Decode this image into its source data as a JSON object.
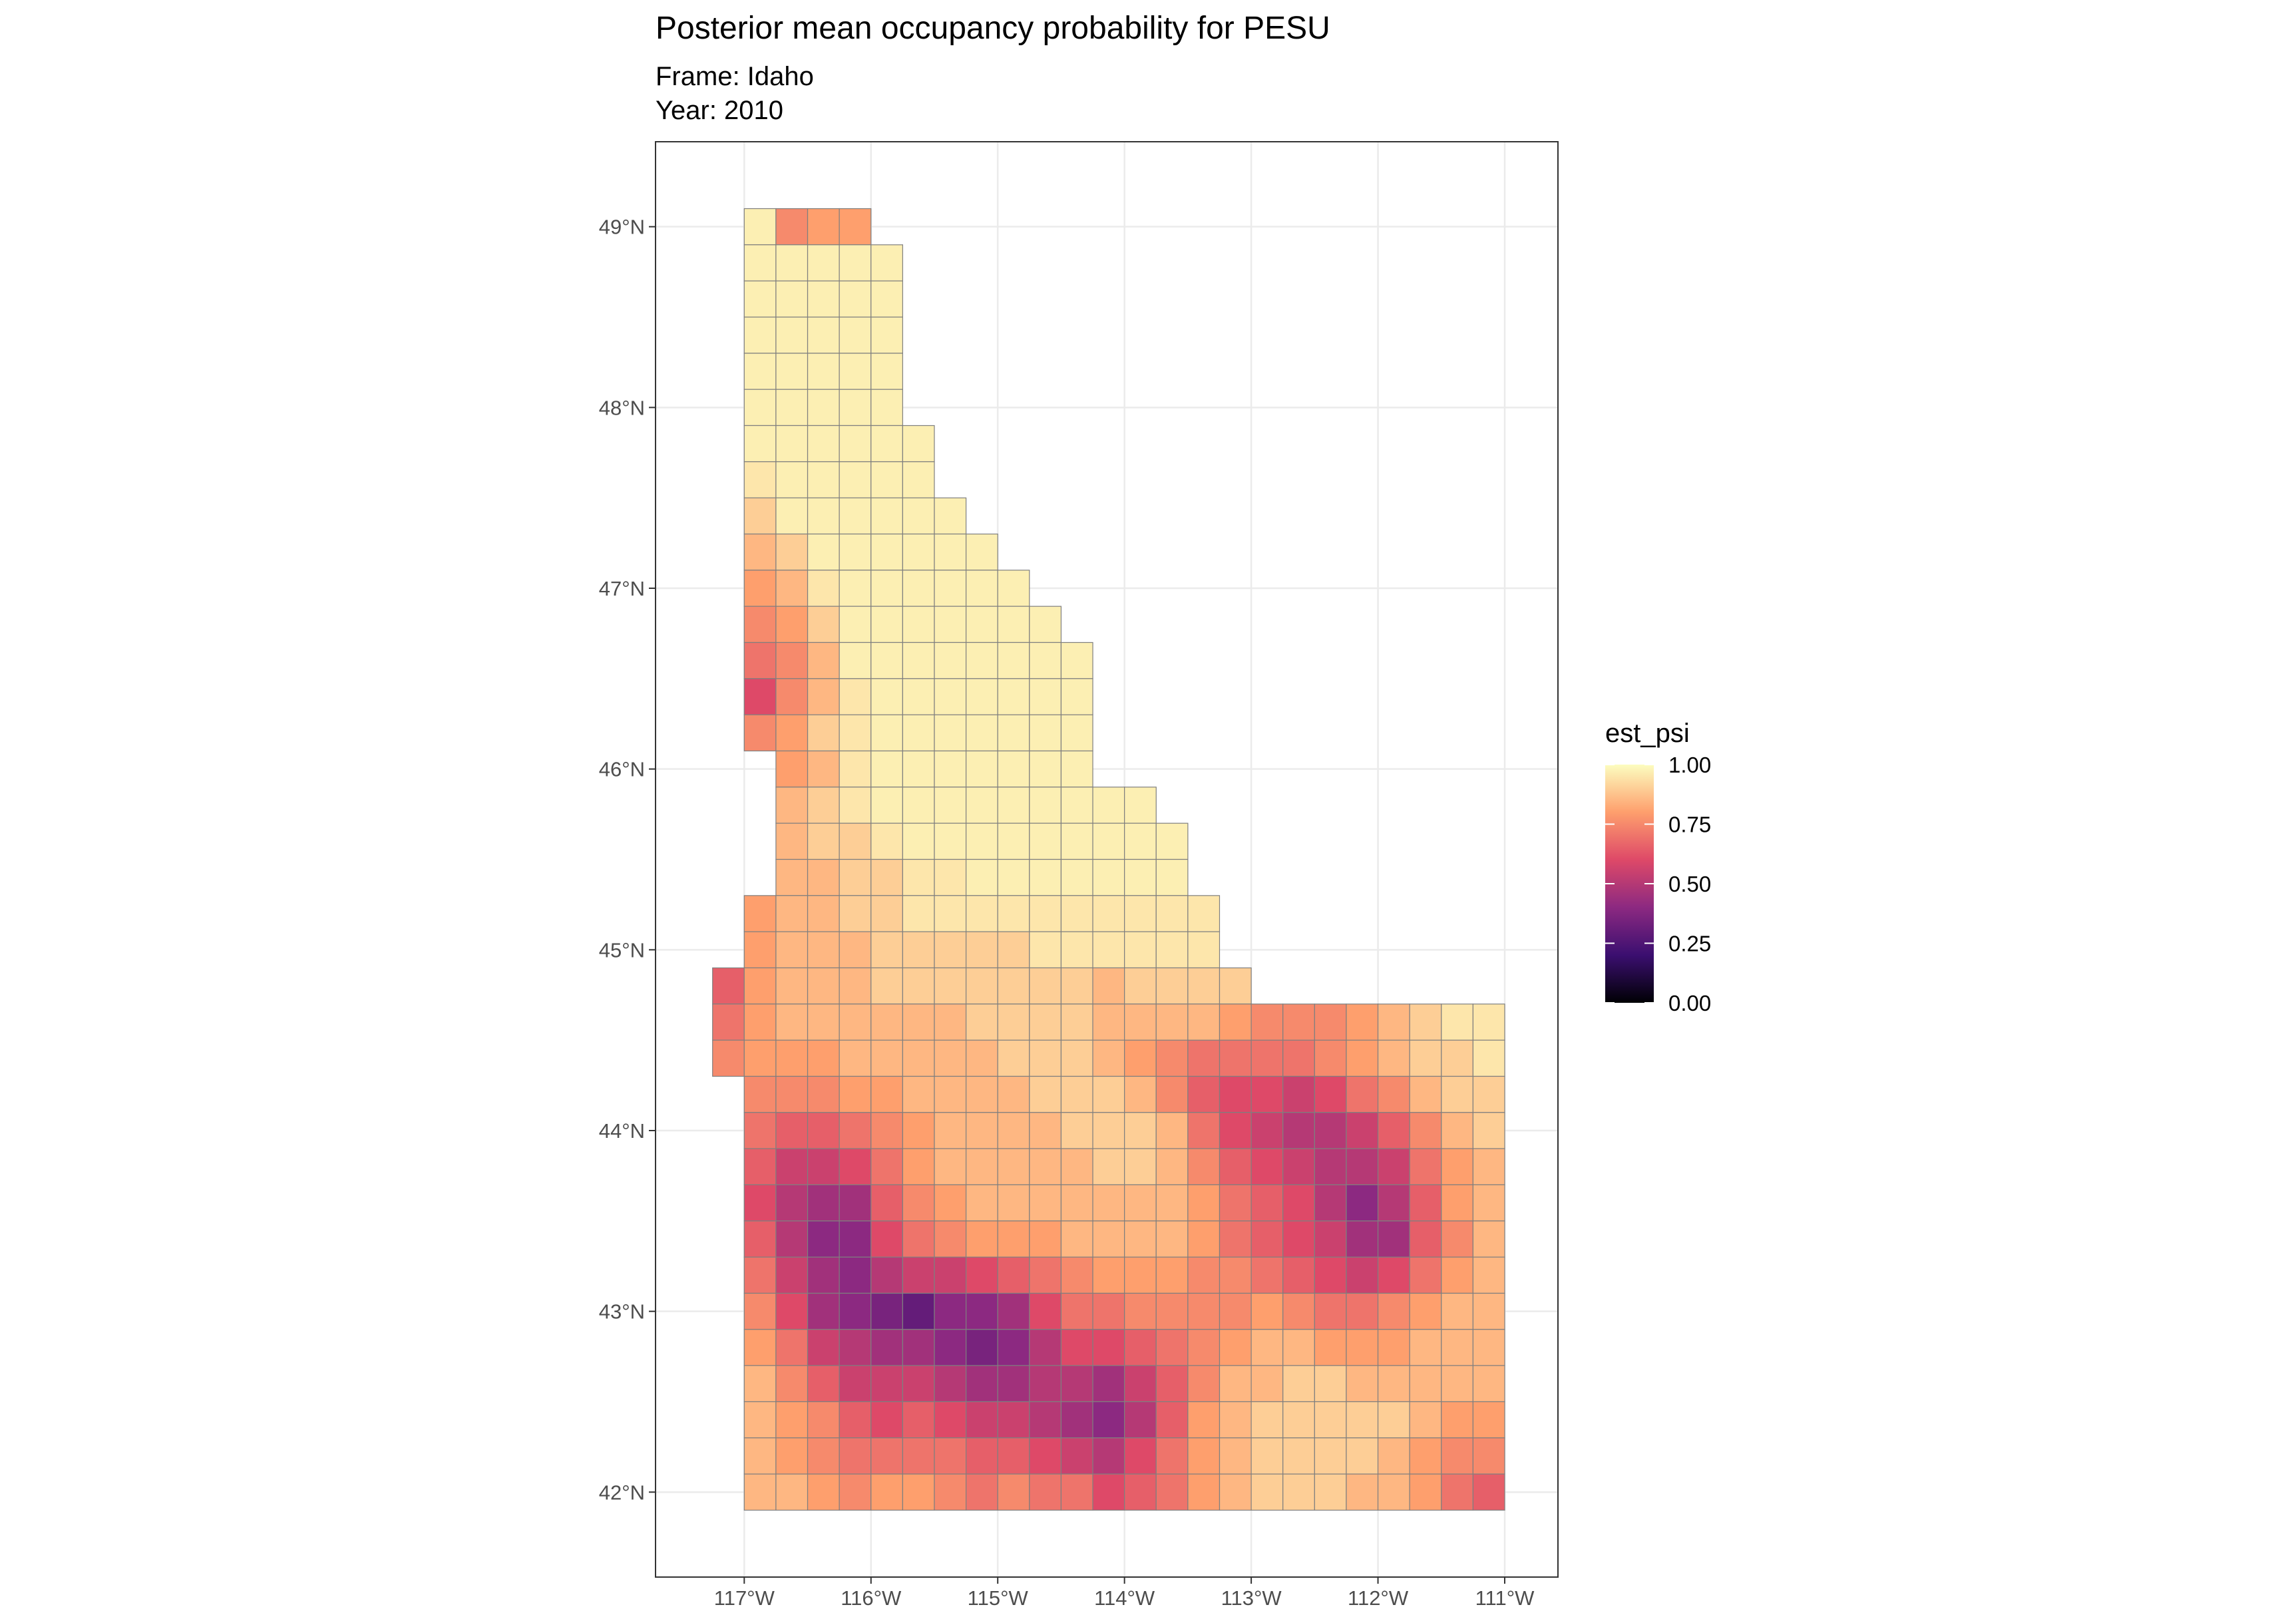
{
  "chart_data": {
    "type": "map",
    "title": "Posterior mean occupancy probability for PESU",
    "subtitle": [
      "Frame: Idaho",
      "Year: 2010"
    ],
    "legend_title": "est_psi",
    "legend_ticks": [
      {
        "value": 0,
        "label": "0.00"
      },
      {
        "value": 0.25,
        "label": "0.25"
      },
      {
        "value": 0.5,
        "label": "0.50"
      },
      {
        "value": 0.75,
        "label": "0.75"
      },
      {
        "value": 1,
        "label": "1.00"
      }
    ],
    "colors": [
      "#000004",
      "#3b0f70",
      "#8c2981",
      "#de4968",
      "#fe9f6d",
      "#fcfdbf"
    ],
    "xlim": [
      -117.7,
      -110.58
    ],
    "ylim": [
      41.53,
      49.47
    ],
    "xticks": [
      {
        "value": -117,
        "label": "117°W"
      },
      {
        "value": -116,
        "label": "116°W"
      },
      {
        "value": -115,
        "label": "115°W"
      },
      {
        "value": -114,
        "label": "114°W"
      },
      {
        "value": -113,
        "label": "113°W"
      },
      {
        "value": -112,
        "label": "112°W"
      },
      {
        "value": -111,
        "label": "111°W"
      }
    ],
    "yticks": [
      {
        "value": 42,
        "label": "42°N"
      },
      {
        "value": 43,
        "label": "43°N"
      },
      {
        "value": 44,
        "label": "44°N"
      },
      {
        "value": 45,
        "label": "45°N"
      },
      {
        "value": 46,
        "label": "46°N"
      },
      {
        "value": 47,
        "label": "47°N"
      },
      {
        "value": 48,
        "label": "48°N"
      },
      {
        "value": 49,
        "label": "49°N"
      }
    ],
    "grid": true,
    "cell_size": [
      0.25,
      0.2
    ],
    "rows": [
      {
        "lat": 48.9,
        "lon": -117.0,
        "values": [
          0.97,
          0.75,
          0.8,
          0.8
        ]
      },
      {
        "lat": 48.7,
        "lon": -117.0,
        "values": [
          0.97,
          0.97,
          0.97,
          0.97,
          0.97
        ]
      },
      {
        "lat": 48.5,
        "lon": -117.0,
        "values": [
          0.97,
          0.97,
          0.97,
          0.97,
          0.97
        ]
      },
      {
        "lat": 48.3,
        "lon": -117.0,
        "values": [
          0.97,
          0.97,
          0.97,
          0.97,
          0.97
        ]
      },
      {
        "lat": 48.1,
        "lon": -117.0,
        "values": [
          0.97,
          0.97,
          0.97,
          0.97,
          0.97
        ]
      },
      {
        "lat": 47.9,
        "lon": -117.0,
        "values": [
          0.97,
          0.97,
          0.97,
          0.97,
          0.97
        ]
      },
      {
        "lat": 47.7,
        "lon": -117.0,
        "values": [
          0.97,
          0.97,
          0.97,
          0.97,
          0.97,
          0.97
        ]
      },
      {
        "lat": 47.5,
        "lon": -117.0,
        "values": [
          0.95,
          0.97,
          0.97,
          0.97,
          0.97,
          0.97
        ]
      },
      {
        "lat": 47.3,
        "lon": -117.0,
        "values": [
          0.9,
          0.97,
          0.97,
          0.97,
          0.97,
          0.97,
          0.97
        ]
      },
      {
        "lat": 47.1,
        "lon": -117.0,
        "values": [
          0.85,
          0.9,
          0.97,
          0.97,
          0.97,
          0.97,
          0.97,
          0.97
        ]
      },
      {
        "lat": 46.9,
        "lon": -117.0,
        "values": [
          0.8,
          0.85,
          0.95,
          0.97,
          0.97,
          0.97,
          0.97,
          0.97,
          0.97
        ]
      },
      {
        "lat": 46.7,
        "lon": -117.0,
        "values": [
          0.75,
          0.8,
          0.9,
          0.97,
          0.97,
          0.97,
          0.97,
          0.97,
          0.97,
          0.97
        ]
      },
      {
        "lat": 46.5,
        "lon": -117.0,
        "values": [
          0.7,
          0.75,
          0.85,
          0.97,
          0.97,
          0.97,
          0.97,
          0.97,
          0.97,
          0.97,
          0.97
        ]
      },
      {
        "lat": 46.3,
        "lon": -117.0,
        "values": [
          0.6,
          0.75,
          0.85,
          0.95,
          0.97,
          0.97,
          0.97,
          0.97,
          0.97,
          0.97,
          0.97
        ]
      },
      {
        "lat": 46.1,
        "lon": -117.0,
        "values": [
          0.75,
          0.8,
          0.9,
          0.95,
          0.97,
          0.97,
          0.97,
          0.97,
          0.97,
          0.97,
          0.97
        ]
      },
      {
        "lat": 45.9,
        "lon": -116.75,
        "values": [
          0.8,
          0.85,
          0.95,
          0.97,
          0.97,
          0.97,
          0.97,
          0.97,
          0.97,
          0.97
        ]
      },
      {
        "lat": 45.7,
        "lon": -116.75,
        "values": [
          0.85,
          0.9,
          0.95,
          0.97,
          0.97,
          0.97,
          0.97,
          0.97,
          0.97,
          0.97,
          0.97,
          0.97
        ]
      },
      {
        "lat": 45.5,
        "lon": -116.75,
        "values": [
          0.85,
          0.9,
          0.9,
          0.95,
          0.97,
          0.97,
          0.97,
          0.97,
          0.97,
          0.97,
          0.97,
          0.97,
          0.97
        ]
      },
      {
        "lat": 45.3,
        "lon": -116.75,
        "values": [
          0.85,
          0.85,
          0.9,
          0.9,
          0.95,
          0.95,
          0.97,
          0.97,
          0.97,
          0.97,
          0.97,
          0.97,
          0.97
        ]
      },
      {
        "lat": 45.1,
        "lon": -117.0,
        "values": [
          0.8,
          0.85,
          0.85,
          0.9,
          0.9,
          0.95,
          0.95,
          0.95,
          0.95,
          0.95,
          0.95,
          0.95,
          0.95,
          0.95,
          0.95
        ]
      },
      {
        "lat": 44.9,
        "lon": -117.0,
        "values": [
          0.8,
          0.85,
          0.85,
          0.85,
          0.9,
          0.9,
          0.9,
          0.9,
          0.9,
          0.95,
          0.95,
          0.95,
          0.95,
          0.95,
          0.95
        ]
      },
      {
        "lat": 44.7,
        "lon": -117.25,
        "values": [
          0.65,
          0.8,
          0.85,
          0.85,
          0.85,
          0.9,
          0.9,
          0.9,
          0.9,
          0.9,
          0.9,
          0.9,
          0.85,
          0.9,
          0.9,
          0.9,
          0.9
        ]
      },
      {
        "lat": 44.5,
        "lon": -117.25,
        "values": [
          0.7,
          0.8,
          0.85,
          0.85,
          0.85,
          0.85,
          0.85,
          0.85,
          0.9,
          0.9,
          0.9,
          0.9,
          0.85,
          0.85,
          0.85,
          0.85,
          0.8,
          0.75,
          0.75,
          0.75,
          0.8,
          0.85,
          0.9,
          0.95,
          0.95
        ]
      },
      {
        "lat": 44.3,
        "lon": -117.25,
        "values": [
          0.75,
          0.8,
          0.8,
          0.8,
          0.85,
          0.85,
          0.85,
          0.85,
          0.85,
          0.9,
          0.9,
          0.9,
          0.85,
          0.8,
          0.75,
          0.7,
          0.7,
          0.7,
          0.7,
          0.75,
          0.8,
          0.85,
          0.9,
          0.9,
          0.95
        ]
      },
      {
        "lat": 44.1,
        "lon": -117.0,
        "values": [
          0.75,
          0.75,
          0.75,
          0.8,
          0.8,
          0.85,
          0.85,
          0.85,
          0.85,
          0.9,
          0.9,
          0.9,
          0.85,
          0.75,
          0.65,
          0.6,
          0.6,
          0.55,
          0.6,
          0.7,
          0.75,
          0.85,
          0.9,
          0.9
        ]
      },
      {
        "lat": 43.9,
        "lon": -117.0,
        "values": [
          0.7,
          0.65,
          0.65,
          0.7,
          0.75,
          0.8,
          0.85,
          0.85,
          0.85,
          0.85,
          0.9,
          0.9,
          0.9,
          0.85,
          0.7,
          0.6,
          0.55,
          0.5,
          0.5,
          0.55,
          0.65,
          0.75,
          0.85,
          0.9
        ]
      },
      {
        "lat": 43.7,
        "lon": -117.0,
        "values": [
          0.65,
          0.55,
          0.55,
          0.6,
          0.7,
          0.8,
          0.85,
          0.85,
          0.85,
          0.85,
          0.85,
          0.9,
          0.9,
          0.85,
          0.75,
          0.65,
          0.6,
          0.55,
          0.5,
          0.5,
          0.55,
          0.7,
          0.8,
          0.85
        ]
      },
      {
        "lat": 43.5,
        "lon": -117.0,
        "values": [
          0.6,
          0.5,
          0.45,
          0.45,
          0.65,
          0.75,
          0.8,
          0.85,
          0.85,
          0.85,
          0.85,
          0.85,
          0.85,
          0.85,
          0.8,
          0.7,
          0.65,
          0.6,
          0.5,
          0.4,
          0.5,
          0.65,
          0.8,
          0.85
        ]
      },
      {
        "lat": 43.3,
        "lon": -117.0,
        "values": [
          0.65,
          0.5,
          0.4,
          0.4,
          0.6,
          0.7,
          0.75,
          0.8,
          0.8,
          0.8,
          0.85,
          0.85,
          0.85,
          0.85,
          0.8,
          0.7,
          0.65,
          0.6,
          0.55,
          0.45,
          0.45,
          0.65,
          0.75,
          0.85
        ]
      },
      {
        "lat": 43.1,
        "lon": -117.0,
        "values": [
          0.7,
          0.55,
          0.45,
          0.4,
          0.5,
          0.55,
          0.55,
          0.6,
          0.65,
          0.7,
          0.75,
          0.8,
          0.8,
          0.8,
          0.75,
          0.75,
          0.7,
          0.65,
          0.6,
          0.55,
          0.6,
          0.7,
          0.8,
          0.85
        ]
      },
      {
        "lat": 42.9,
        "lon": -117.0,
        "values": [
          0.75,
          0.6,
          0.45,
          0.4,
          0.35,
          0.3,
          0.4,
          0.4,
          0.45,
          0.6,
          0.7,
          0.7,
          0.75,
          0.75,
          0.75,
          0.75,
          0.8,
          0.75,
          0.7,
          0.7,
          0.75,
          0.8,
          0.85,
          0.85
        ]
      },
      {
        "lat": 42.7,
        "lon": -117.0,
        "values": [
          0.8,
          0.7,
          0.55,
          0.5,
          0.45,
          0.45,
          0.4,
          0.35,
          0.4,
          0.5,
          0.6,
          0.6,
          0.65,
          0.7,
          0.75,
          0.8,
          0.85,
          0.85,
          0.8,
          0.8,
          0.8,
          0.85,
          0.85,
          0.85
        ]
      },
      {
        "lat": 42.5,
        "lon": -117.0,
        "values": [
          0.85,
          0.75,
          0.65,
          0.55,
          0.55,
          0.55,
          0.5,
          0.45,
          0.45,
          0.5,
          0.5,
          0.45,
          0.55,
          0.65,
          0.75,
          0.85,
          0.85,
          0.9,
          0.9,
          0.85,
          0.85,
          0.85,
          0.85,
          0.85
        ]
      },
      {
        "lat": 42.3,
        "lon": -117.0,
        "values": [
          0.85,
          0.8,
          0.75,
          0.65,
          0.6,
          0.65,
          0.6,
          0.55,
          0.55,
          0.5,
          0.45,
          0.4,
          0.5,
          0.65,
          0.8,
          0.85,
          0.9,
          0.9,
          0.9,
          0.9,
          0.9,
          0.85,
          0.8,
          0.8
        ]
      },
      {
        "lat": 42.1,
        "lon": -117.0,
        "values": [
          0.85,
          0.8,
          0.75,
          0.7,
          0.7,
          0.7,
          0.7,
          0.65,
          0.65,
          0.6,
          0.55,
          0.5,
          0.6,
          0.7,
          0.8,
          0.85,
          0.9,
          0.9,
          0.9,
          0.9,
          0.85,
          0.8,
          0.75,
          0.75
        ]
      },
      {
        "lat": 41.9,
        "lon": -117.0,
        "values": [
          0.85,
          0.85,
          0.8,
          0.75,
          0.8,
          0.8,
          0.75,
          0.7,
          0.75,
          0.7,
          0.7,
          0.6,
          0.65,
          0.7,
          0.8,
          0.85,
          0.9,
          0.9,
          0.9,
          0.85,
          0.85,
          0.8,
          0.7,
          0.65
        ]
      }
    ]
  }
}
